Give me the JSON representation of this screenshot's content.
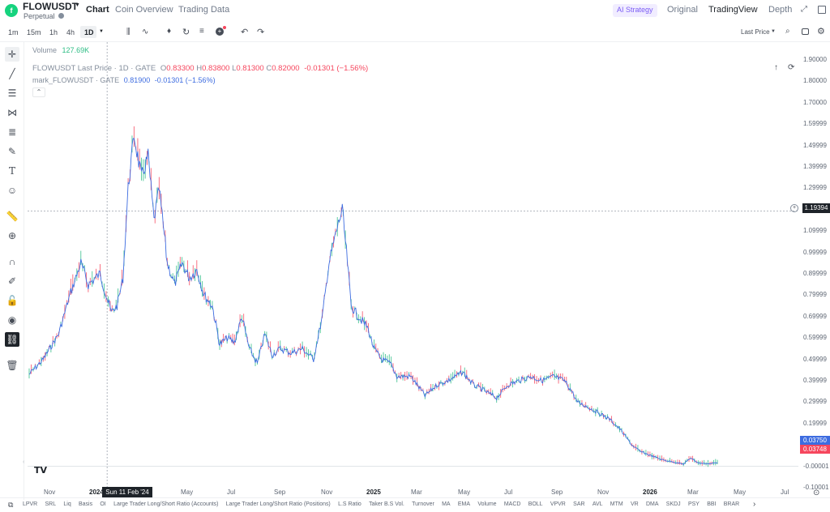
{
  "header": {
    "symbol": "FLOWUSDT",
    "subtitle": "Perpetual",
    "tabs": [
      "Chart",
      "Coin Overview",
      "Trading Data"
    ],
    "right_links": [
      "AI Strategy",
      "Original",
      "TradingView",
      "Depth"
    ]
  },
  "toolbar": {
    "intervals": [
      "1m",
      "15m",
      "1h",
      "4h",
      "1D"
    ],
    "price_type": "Last Price"
  },
  "legend": {
    "volume_label": "Volume",
    "volume_value": "127.69K",
    "line1_title": "FLOWUSDT Last Price · 1D · GATE",
    "o_label": "O",
    "o_value": "0.83300",
    "h_label": "H",
    "h_value": "0.83800",
    "l_label": "L",
    "l_value": "0.81300",
    "c_label": "C",
    "c_value": "0.82000",
    "change": "-0.01301 (−1.56%)",
    "line2_title": "mark_FLOWUSDT · GATE",
    "mark_value": "0.81900",
    "mark_change": "-0.01301 (−1.56%)"
  },
  "price_labels": {
    "crosshair": "1.19394",
    "mark": "0.03750",
    "last": "0.03748"
  },
  "crosshair_date": "Sun 11 Feb '24",
  "colors": {
    "up": "#2ebd85",
    "down": "#f6465d",
    "mark": "#3d6ce0",
    "accent": "#7b5cf5"
  },
  "bottom_indicators": [
    "LPVR",
    "SRL",
    "Liq",
    "Basis",
    "OI",
    "Large Trader Long/Short Ratio (Accounts)",
    "Large Trader Long/Short Ratio (Positions)",
    "L.S Ratio",
    "Taker B.S Vol.",
    "Turnover",
    "MA",
    "EMA",
    "Volume",
    "MACD",
    "BOLL",
    "VPVR",
    "SAR",
    "AVL",
    "MTM",
    "VR",
    "DMA",
    "SKDJ",
    "PSY",
    "BBI",
    "BRAR"
  ],
  "chart_data": {
    "type": "line",
    "y_ticks": [
      "1.90000",
      "1.80000",
      "1.70000",
      "1.59999",
      "1.49999",
      "1.39999",
      "1.29999",
      "1.19999",
      "1.09999",
      "0.99999",
      "0.89999",
      "0.79999",
      "0.69999",
      "0.59999",
      "0.49999",
      "0.39999",
      "0.29999",
      "0.19999",
      "0.09999",
      "-0.00001",
      "-0.10001"
    ],
    "x_ticks": [
      "Nov",
      "2024",
      "May",
      "Jul",
      "Sep",
      "Nov",
      "2025",
      "Mar",
      "May",
      "Jul",
      "Sep",
      "Nov",
      "2026",
      "Mar",
      "May",
      "Jul"
    ],
    "ylim": [
      -0.10001,
      1.9
    ],
    "series": [
      {
        "x": [
          "2023-10-01",
          "2023-10-20",
          "2023-11-10",
          "2023-11-25",
          "2023-12-10",
          "2023-12-20",
          "2024-01-05",
          "2024-01-20",
          "2024-01-28",
          "2024-02-05",
          "2024-02-12",
          "2024-02-20",
          "2024-03-01",
          "2024-03-10",
          "2024-03-18",
          "2024-03-25",
          "2024-04-05",
          "2024-04-15",
          "2024-04-25",
          "2024-05-05",
          "2024-05-15",
          "2024-05-25",
          "2024-06-05",
          "2024-06-15",
          "2024-06-25",
          "2024-07-05",
          "2024-07-15",
          "2024-07-25",
          "2024-08-05",
          "2024-08-15",
          "2024-08-25",
          "2024-09-05",
          "2024-09-20",
          "2024-10-05",
          "2024-10-20",
          "2024-11-01",
          "2024-11-10",
          "2024-11-20",
          "2024-11-28",
          "2024-12-05",
          "2024-12-10",
          "2024-12-20",
          "2025-01-01",
          "2025-01-10",
          "2025-01-20",
          "2025-02-01",
          "2025-02-10",
          "2025-03-01",
          "2025-03-20",
          "2025-04-05",
          "2025-04-20",
          "2025-05-10",
          "2025-05-25",
          "2025-06-10",
          "2025-06-25",
          "2025-07-10",
          "2025-07-25",
          "2025-08-10",
          "2025-08-25",
          "2025-09-10",
          "2025-09-25",
          "2025-10-05",
          "2025-10-12",
          "2025-10-25",
          "2025-11-10",
          "2025-11-25",
          "2025-12-10",
          "2025-12-25",
          "2026-01-05",
          "2026-01-20",
          "2026-02-05",
          "2026-02-20",
          "2026-03-05",
          "2026-03-15",
          "2026-03-25",
          "2026-04-10",
          "2026-04-20"
        ],
        "y": [
          0.43,
          0.5,
          0.62,
          0.8,
          0.95,
          0.85,
          0.9,
          0.72,
          0.75,
          0.88,
          1.3,
          1.55,
          1.35,
          1.45,
          1.15,
          1.3,
          0.95,
          0.85,
          0.95,
          0.88,
          0.92,
          0.8,
          0.75,
          0.57,
          0.6,
          0.58,
          0.7,
          0.55,
          0.48,
          0.62,
          0.52,
          0.55,
          0.53,
          0.55,
          0.5,
          0.7,
          0.95,
          1.1,
          1.2,
          0.95,
          0.75,
          0.7,
          0.65,
          0.55,
          0.5,
          0.48,
          0.42,
          0.42,
          0.33,
          0.38,
          0.4,
          0.44,
          0.38,
          0.35,
          0.32,
          0.38,
          0.4,
          0.42,
          0.4,
          0.42,
          0.4,
          0.35,
          0.3,
          0.28,
          0.25,
          0.22,
          0.17,
          0.1,
          0.07,
          0.05,
          0.03,
          0.02,
          0.01,
          0.04,
          0.015,
          0.012,
          0.018
        ]
      }
    ]
  }
}
